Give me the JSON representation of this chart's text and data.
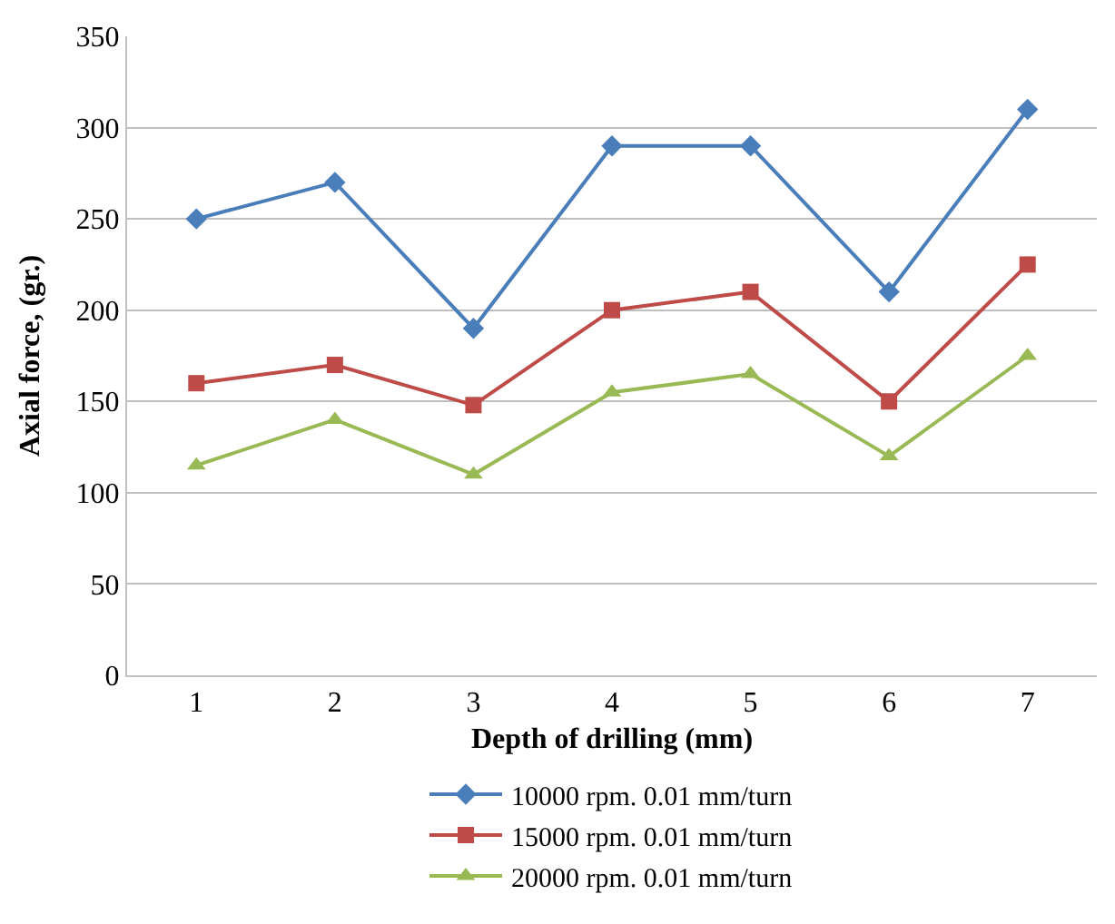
{
  "chart_data": {
    "type": "line",
    "xlabel": "Depth of drilling (mm)",
    "ylabel": "Axial force, (gr.)",
    "categories": [
      "1",
      "2",
      "3",
      "4",
      "5",
      "6",
      "7"
    ],
    "series": [
      {
        "name": "10000 rpm. 0.01 mm/turn",
        "color": "#4a7ebb",
        "marker": "diamond",
        "values": [
          250,
          270,
          190,
          290,
          290,
          210,
          310
        ]
      },
      {
        "name": "15000 rpm. 0.01 mm/turn",
        "color": "#be4b48",
        "marker": "square",
        "values": [
          160,
          170,
          148,
          200,
          210,
          150,
          225
        ]
      },
      {
        "name": "20000 rpm. 0.01 mm/turn",
        "color": "#98b954",
        "marker": "triangle",
        "values": [
          115,
          140,
          110,
          155,
          165,
          120,
          175
        ]
      }
    ],
    "ylim": [
      0,
      350
    ],
    "yticks": [
      0,
      50,
      100,
      150,
      200,
      250,
      300,
      350
    ],
    "grid": "y",
    "legend": "bottom",
    "line_style": "solid"
  }
}
